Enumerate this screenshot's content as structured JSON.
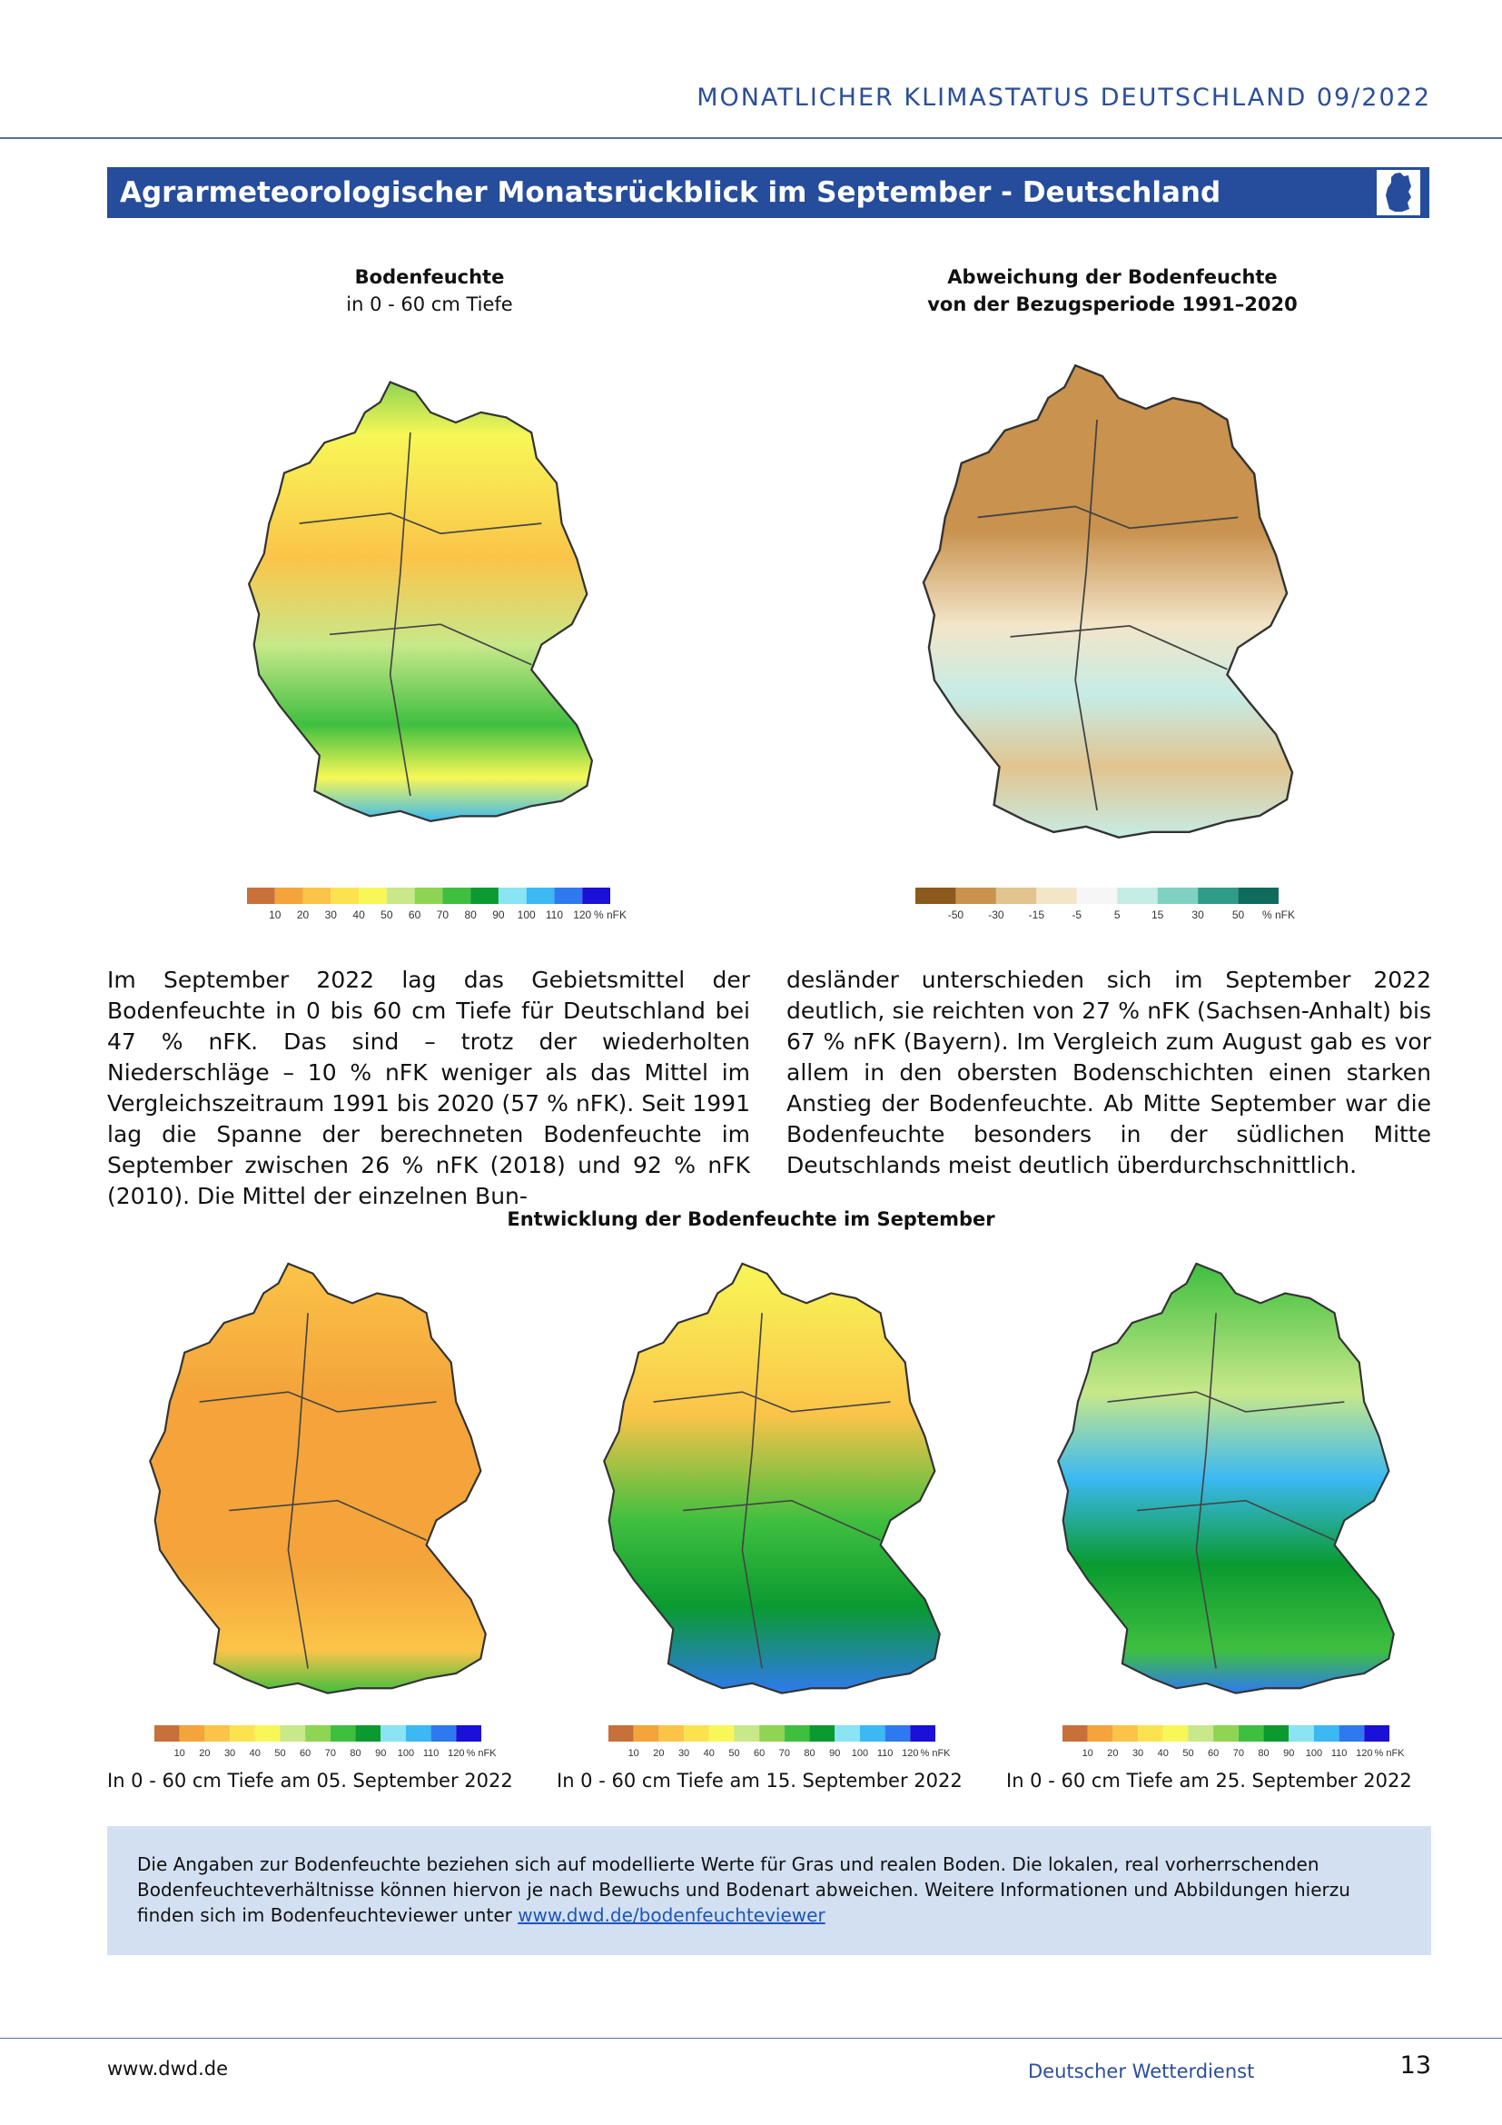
{
  "header": {
    "title": "MONATLICHER KLIMASTATUS DEUTSCHLAND  09/2022"
  },
  "section": {
    "title": "Agrarmeteorologischer Monatsrückblick im September - Deutschland"
  },
  "map1": {
    "title": "Bodenfeuchte",
    "subtitle": "in 0 - 60 cm Tiefe"
  },
  "map2": {
    "title": "Abweichung der Bodenfeuchte",
    "subtitle": "von der Bezugsperiode 1991–2020"
  },
  "legend_abs": {
    "labels": [
      "10",
      "20",
      "30",
      "40",
      "50",
      "60",
      "70",
      "80",
      "90",
      "100",
      "110",
      "120",
      "% nFK"
    ],
    "colors": [
      "#c8703a",
      "#f4a43a",
      "#fbc449",
      "#fde24f",
      "#f7f757",
      "#c8e88a",
      "#8fd452",
      "#3fbf3f",
      "#0a9a30",
      "#8ae4f4",
      "#3cb9f2",
      "#2f79f0",
      "#1a10d8"
    ]
  },
  "legend_dev": {
    "labels": [
      "-50",
      "-30",
      "-15",
      "-5",
      "5",
      "15",
      "30",
      "50",
      "% nFK"
    ],
    "colors": [
      "#8b5a1c",
      "#c9924e",
      "#e2c48f",
      "#f3e5c8",
      "#f6f6f6",
      "#c6ece6",
      "#7fd1c2",
      "#2f9c8a",
      "#0f6b5c"
    ]
  },
  "body": {
    "col1": "Im September 2022 lag das Gebietsmittel der Bodenfeuchte in 0 bis 60 cm Tiefe für Deutschland bei 47 % nFK. Das sind – trotz der wiederholten Niederschläge – 10 % nFK weniger als das Mittel im Vergleichszeitraum 1991 bis 2020 (57 % nFK). Seit 1991 lag die Spanne der berechneten Bodenfeuchte im September zwischen 26 % nFK (2018) und 92 % nFK (2010). Die Mittel der einzelnen Bun-",
    "col2": "desländer unterschieden sich im September 2022 deutlich, sie reichten von 27 % nFK (Sachsen-Anhalt) bis 67 % nFK (Bayern). Im Vergleich zum August gab es vor allem in den obersten Bodenschichten einen starken Anstieg der Bodenfeuchte. Ab Mitte September war die Bodenfeuchte besonders in der südlichen Mitte Deutschlands meist deutlich überdurchschnittlich."
  },
  "development": {
    "title": "Entwicklung der Bodenfeuchte im September",
    "captions": [
      "In 0 - 60 cm Tiefe am 05. September 2022",
      "In 0 - 60 cm Tiefe am 15. September 2022",
      "In 0 - 60 cm Tiefe am 25. September 2022"
    ]
  },
  "info": {
    "text": "Die Angaben zur Bodenfeuchte beziehen sich auf modellierte Werte für Gras und realen Boden. Die lokalen, real vorherrschenden Bodenfeuchteverhältnisse können hiervon je nach Bewuchs und Bodenart abweichen. Weitere Informationen und Abbildungen hierzu finden sich im Bodenfeuchteviewer unter ",
    "link": "www.dwd.de/bodenfeuchteviewer"
  },
  "footer": {
    "url": "www.dwd.de",
    "org": "Deutscher Wetterdienst",
    "page": "13"
  }
}
